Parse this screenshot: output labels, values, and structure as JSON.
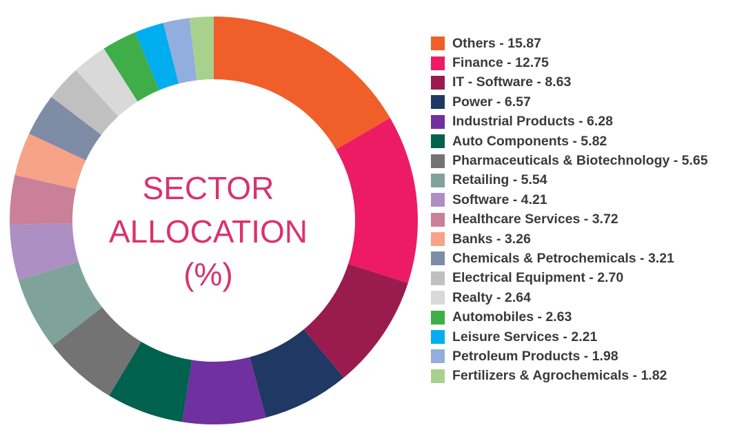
{
  "chart_data": {
    "type": "pie",
    "title": [
      "SECTOR",
      "ALLOCATION",
      "(%)"
    ],
    "categories": [
      "Others",
      "Finance",
      "IT - Software",
      "Power",
      "Industrial Products",
      "Auto Components",
      "Pharmaceuticals & Biotechnology",
      "Retailing",
      "Software",
      "Healthcare Services",
      "Banks",
      "Chemicals & Petrochemicals",
      "Electrical Equipment",
      "Realty",
      "Automobiles",
      "Leisure Services",
      "Petroleum Products",
      "Fertilizers & Agrochemicals"
    ],
    "values": [
      15.87,
      12.75,
      8.63,
      6.57,
      6.28,
      5.82,
      5.65,
      5.54,
      4.21,
      3.72,
      3.26,
      3.21,
      2.7,
      2.64,
      2.63,
      2.21,
      1.98,
      1.82
    ],
    "labels": [
      "Others - 15.87",
      "Finance - 12.75",
      "IT - Software - 8.63",
      "Power - 6.57",
      "Industrial Products - 6.28",
      "Auto Components - 5.82",
      "Pharmaceuticals & Biotechnology - 5.65",
      "Retailing - 5.54",
      "Software - 4.21",
      "Healthcare Services - 3.72",
      "Banks - 3.26",
      "Chemicals & Petrochemicals - 3.21",
      "Electrical Equipment - 2.70",
      "Realty - 2.64",
      "Automobiles - 2.63",
      "Leisure Services - 2.21",
      "Petroleum Products - 1.98",
      "Fertilizers & Agrochemicals - 1.82"
    ],
    "colors": [
      "#f05f2a",
      "#ec1b64",
      "#9a1c4f",
      "#1f3864",
      "#7030a0",
      "#00614e",
      "#737373",
      "#7fa39a",
      "#ad8fc3",
      "#c98098",
      "#f7a388",
      "#7f8ca6",
      "#c0c0c0",
      "#d9d9d9",
      "#3fae49",
      "#00aeef",
      "#92aede",
      "#a9d18e"
    ],
    "legend": "right",
    "style": "donut"
  }
}
